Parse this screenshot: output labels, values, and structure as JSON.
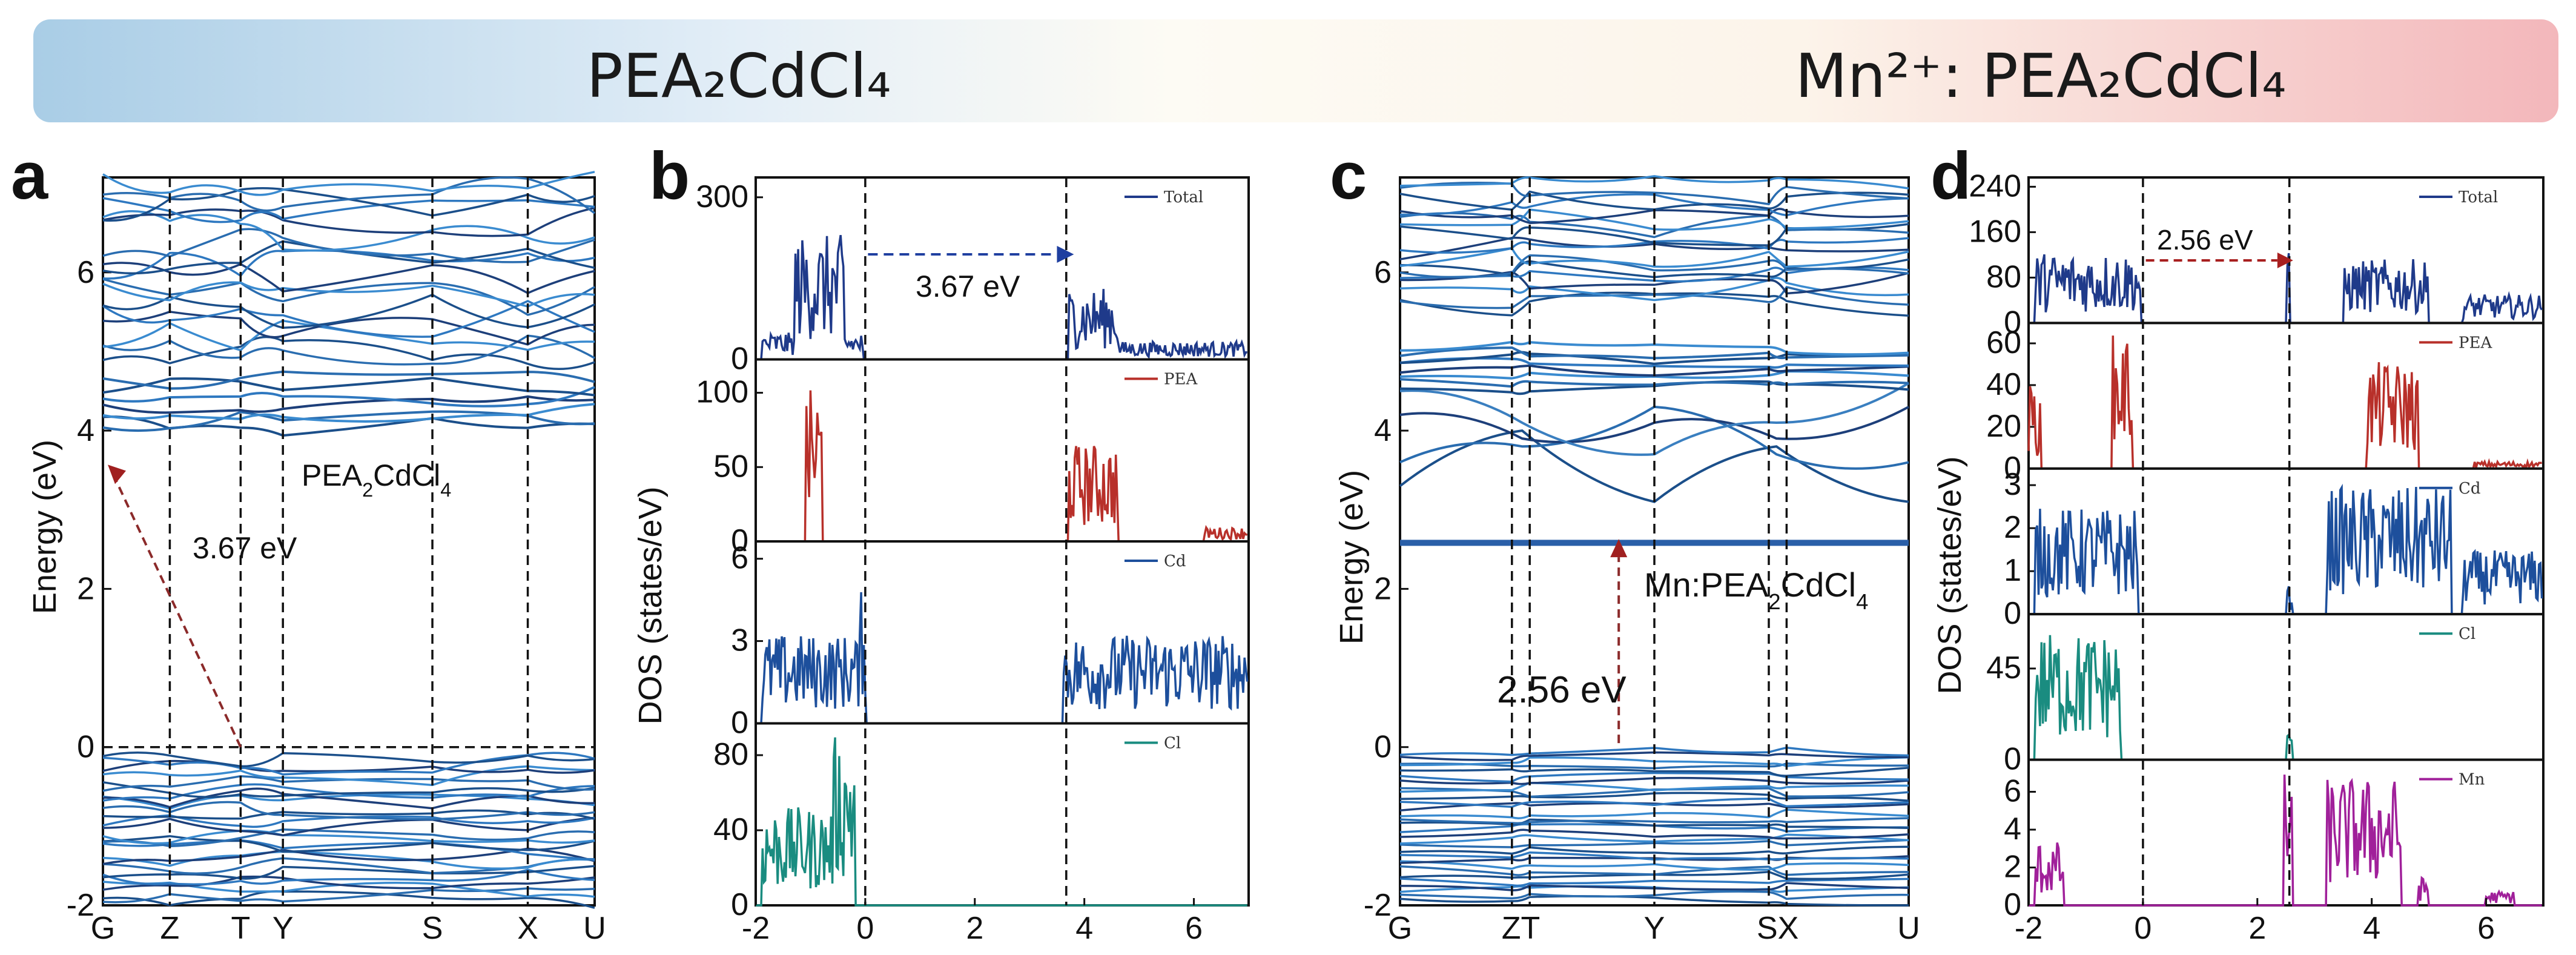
{
  "banner": {
    "left_title": "PEA₂CdCl₄",
    "right_title": "Mn²⁺: PEA₂CdCl₄"
  },
  "panels": {
    "a": "a",
    "b": "b",
    "c": "c",
    "d": "d"
  },
  "chart_data": [
    {
      "id": "a",
      "type": "line",
      "title": "",
      "xlabel": "",
      "ylabel": "Energy (eV)",
      "ylim": [
        -2,
        7.2
      ],
      "yticks": [
        -2,
        0,
        2,
        4,
        6
      ],
      "k_points": [
        "G",
        "Z",
        "T",
        "Y",
        "S",
        "X",
        "U"
      ],
      "k_positions": [
        0,
        0.136,
        0.28,
        0.366,
        0.67,
        0.864,
        1.0
      ],
      "fermi_level": 0,
      "band_gap": {
        "value": 3.67,
        "label": "3.67 eV",
        "from": [
          0.28,
          0
        ],
        "to": [
          0,
          3.6
        ]
      },
      "annotation": {
        "prefix": "PEA",
        "sub1": "2",
        "mid": "CdCl",
        "sub2": "4"
      }
    },
    {
      "id": "b",
      "type": "line",
      "xlabel": "",
      "ylabel": "DOS (states/eV)",
      "xlim": [
        -2,
        7
      ],
      "xticks": [
        -2,
        0,
        2,
        4,
        6
      ],
      "vlines": [
        0,
        3.67
      ],
      "gap_annotation": "3.67 eV",
      "subplots": [
        {
          "legend": "Total",
          "color": "#1f3a8a",
          "ylim": [
            0,
            330
          ],
          "yticks": [
            0,
            300
          ]
        },
        {
          "legend": "PEA",
          "color": "#b8302a",
          "ylim": [
            0,
            120
          ],
          "yticks": [
            0,
            50,
            100
          ]
        },
        {
          "legend": "Cd",
          "color": "#1d4f9c",
          "ylim": [
            0,
            6.5
          ],
          "yticks": [
            0,
            3,
            6
          ]
        },
        {
          "legend": "Cl",
          "color": "#1a8c80",
          "ylim": [
            0,
            95
          ],
          "yticks": [
            0,
            40,
            80
          ]
        }
      ]
    },
    {
      "id": "c",
      "type": "line",
      "title": "",
      "xlabel": "",
      "ylabel": "Energy (eV)",
      "ylim": [
        -2,
        7.2
      ],
      "yticks": [
        -2,
        0,
        2,
        4,
        6
      ],
      "k_points": [
        "G",
        "Z",
        "T",
        "Y",
        "S",
        "X",
        "U"
      ],
      "k_labels_display": [
        "G",
        "ZT",
        "Y",
        "SX",
        "U"
      ],
      "k_positions": [
        0,
        0.22,
        0.255,
        0.5,
        0.725,
        0.76,
        1.0
      ],
      "band_gap": {
        "value": 2.56,
        "label": "2.56 eV"
      },
      "annotation": {
        "prefix": "Mn:PEA",
        "sub1": "2",
        "mid": "CdCl",
        "sub2": "4"
      }
    },
    {
      "id": "d",
      "type": "line",
      "xlabel": "",
      "ylabel": "DOS (states/eV)",
      "xlim": [
        -2,
        7
      ],
      "xticks": [
        -2,
        0,
        2,
        4,
        6
      ],
      "vlines": [
        0,
        2.56
      ],
      "gap_annotation": "2.56 eV",
      "subplots": [
        {
          "legend": "Total",
          "color": "#1f3a8a",
          "ylim": [
            0,
            250
          ],
          "yticks": [
            0,
            80,
            160,
            240
          ]
        },
        {
          "legend": "PEA",
          "color": "#b8302a",
          "ylim": [
            0,
            68
          ],
          "yticks": [
            0,
            20,
            40,
            60
          ]
        },
        {
          "legend": "Cd",
          "color": "#1d4f9c",
          "ylim": [
            0,
            3.3
          ],
          "yticks": [
            0,
            1,
            2,
            3
          ]
        },
        {
          "legend": "Cl",
          "color": "#1a8c80",
          "ylim": [
            0,
            70
          ],
          "yticks": [
            0,
            45
          ]
        },
        {
          "legend": "Mn",
          "color": "#a0209a",
          "ylim": [
            0,
            7.5
          ],
          "yticks": [
            0,
            2,
            4,
            6
          ]
        }
      ]
    }
  ]
}
